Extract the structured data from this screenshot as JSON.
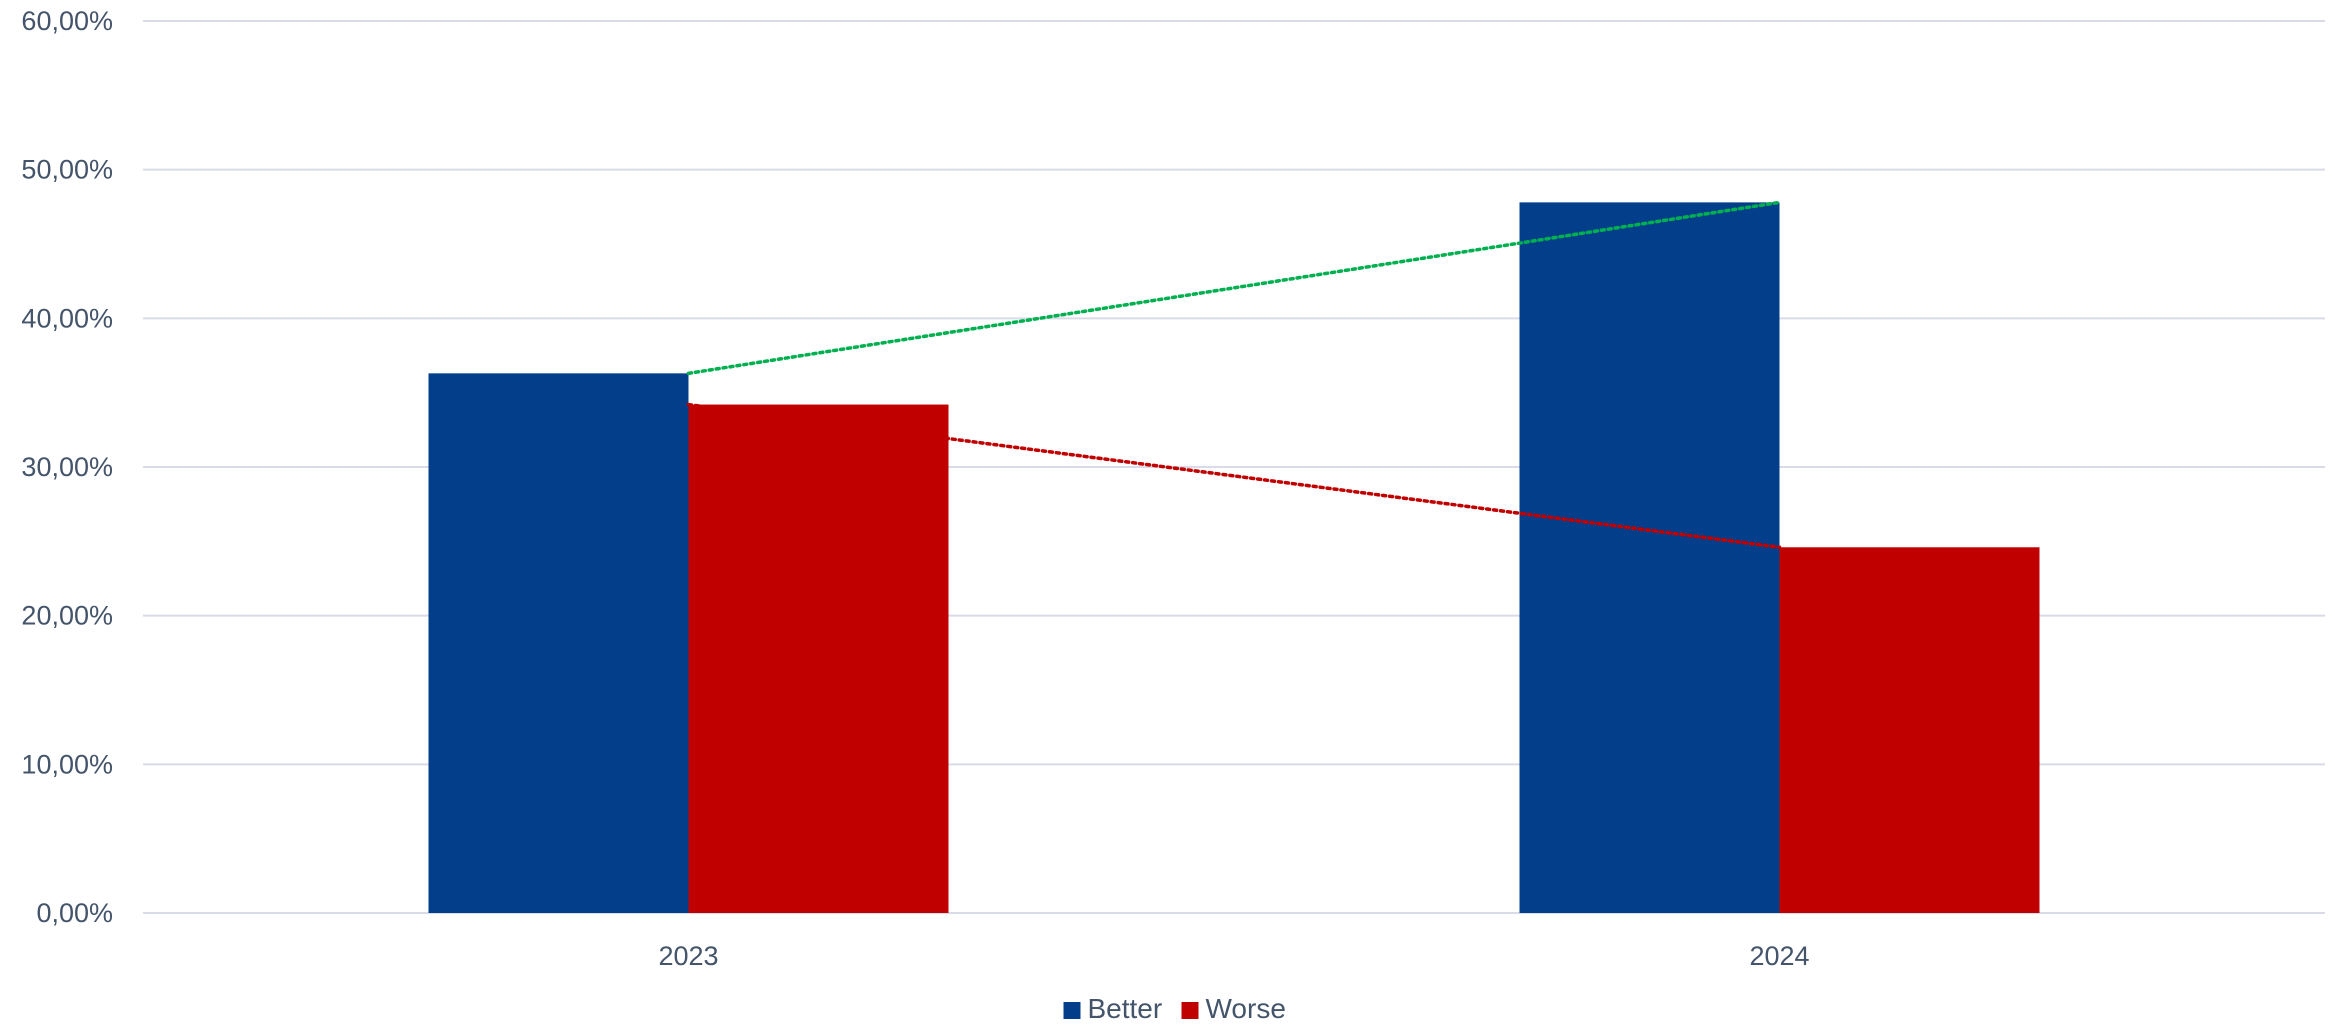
{
  "chart_data": {
    "type": "bar",
    "title": "",
    "xlabel": "",
    "ylabel": "",
    "categories": [
      "2023",
      "2024"
    ],
    "series": [
      {
        "name": "Better",
        "values": [
          36.3,
          47.8
        ],
        "color": "#033E8A"
      },
      {
        "name": "Worse",
        "values": [
          34.2,
          24.6
        ],
        "color": "#C00000"
      }
    ],
    "trendlines": [
      {
        "series": "Better",
        "color": "#00B050",
        "style": "dotted"
      },
      {
        "series": "Worse",
        "color": "#C00000",
        "style": "dotted"
      }
    ],
    "ylim": [
      0,
      60
    ],
    "yticks": [
      0,
      10,
      20,
      30,
      40,
      50,
      60
    ],
    "ytick_labels": [
      "0,00%",
      "10,00%",
      "20,00%",
      "30,00%",
      "40,00%",
      "50,00%",
      "60,00%"
    ],
    "grid": true,
    "gridline_color": "#D9DCE8",
    "legend_position": "bottom",
    "tick_label_color": "#44546A"
  }
}
